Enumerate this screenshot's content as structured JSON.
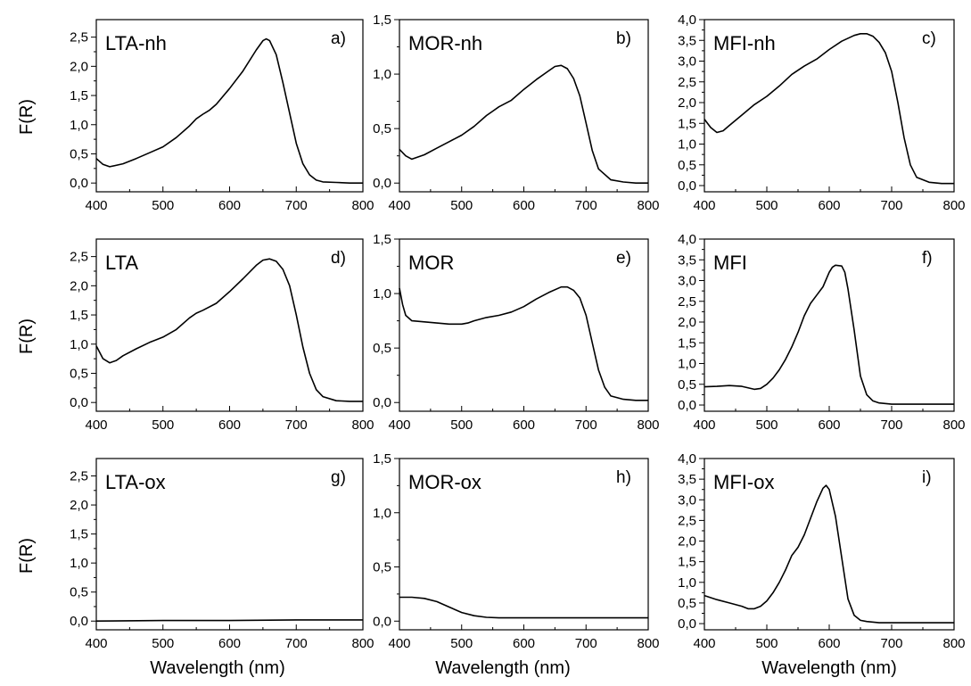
{
  "figure": {
    "ylabel": "F(R)",
    "xlabel": "Wavelength (nm)"
  },
  "chart_data": [
    {
      "id": "a",
      "type": "line",
      "label": "LTA-nh",
      "letter": "a)",
      "xlim": [
        400,
        800
      ],
      "ylim": [
        -0.15,
        2.8
      ],
      "xticks": [
        400,
        500,
        600,
        700,
        800
      ],
      "xtick_labels": [
        "400",
        "500",
        "600",
        "700",
        "800"
      ],
      "yticks": [
        0,
        0.5,
        1,
        1.5,
        2,
        2.5
      ],
      "ytick_labels": [
        "0,0",
        "0,5",
        "1,0",
        "1,5",
        "2,0",
        "2,5"
      ],
      "series": [
        {
          "x": [
            400,
            410,
            420,
            440,
            460,
            480,
            500,
            520,
            540,
            550,
            560,
            570,
            580,
            600,
            620,
            640,
            650,
            655,
            660,
            670,
            680,
            690,
            700,
            710,
            720,
            730,
            740,
            760,
            780,
            800
          ],
          "y": [
            0.42,
            0.32,
            0.28,
            0.33,
            0.42,
            0.52,
            0.62,
            0.78,
            0.98,
            1.1,
            1.18,
            1.25,
            1.35,
            1.62,
            1.92,
            2.28,
            2.44,
            2.47,
            2.44,
            2.2,
            1.72,
            1.2,
            0.68,
            0.33,
            0.14,
            0.05,
            0.02,
            0.01,
            0.0,
            0.0
          ]
        }
      ]
    },
    {
      "id": "b",
      "type": "line",
      "label": "MOR-nh",
      "letter": "b)",
      "xlim": [
        400,
        800
      ],
      "ylim": [
        -0.08,
        1.5
      ],
      "xticks": [
        400,
        500,
        600,
        700,
        800
      ],
      "xtick_labels": [
        "400",
        "500",
        "600",
        "700",
        "800"
      ],
      "yticks": [
        0,
        0.5,
        1,
        1.5
      ],
      "ytick_labels": [
        "0,0",
        "0,5",
        "1,0",
        "1,5"
      ],
      "series": [
        {
          "x": [
            400,
            410,
            420,
            440,
            460,
            480,
            500,
            520,
            540,
            550,
            560,
            580,
            600,
            620,
            640,
            650,
            660,
            670,
            680,
            690,
            700,
            710,
            720,
            740,
            760,
            780,
            800
          ],
          "y": [
            0.31,
            0.25,
            0.22,
            0.26,
            0.32,
            0.38,
            0.44,
            0.52,
            0.62,
            0.66,
            0.7,
            0.76,
            0.86,
            0.95,
            1.03,
            1.07,
            1.08,
            1.05,
            0.96,
            0.8,
            0.55,
            0.3,
            0.13,
            0.03,
            0.01,
            0.0,
            0.0
          ]
        }
      ]
    },
    {
      "id": "c",
      "type": "line",
      "label": "MFI-nh",
      "letter": "c)",
      "xlim": [
        400,
        800
      ],
      "ylim": [
        -0.15,
        4.0
      ],
      "xticks": [
        400,
        500,
        600,
        700,
        800
      ],
      "xtick_labels": [
        "400",
        "500",
        "600",
        "700",
        "800"
      ],
      "yticks": [
        0,
        0.5,
        1,
        1.5,
        2,
        2.5,
        3,
        3.5,
        4
      ],
      "ytick_labels": [
        "0,0",
        "0,5",
        "1,0",
        "1,5",
        "2,0",
        "2,5",
        "3,0",
        "3,5",
        "4,0"
      ],
      "series": [
        {
          "x": [
            400,
            410,
            420,
            430,
            440,
            460,
            480,
            500,
            520,
            540,
            560,
            580,
            600,
            620,
            640,
            650,
            660,
            670,
            680,
            690,
            700,
            710,
            720,
            730,
            740,
            760,
            780,
            800
          ],
          "y": [
            1.6,
            1.4,
            1.28,
            1.32,
            1.45,
            1.7,
            1.95,
            2.15,
            2.4,
            2.68,
            2.88,
            3.05,
            3.28,
            3.48,
            3.62,
            3.66,
            3.66,
            3.6,
            3.45,
            3.2,
            2.75,
            2.0,
            1.15,
            0.5,
            0.2,
            0.08,
            0.05,
            0.05
          ]
        }
      ]
    },
    {
      "id": "d",
      "type": "line",
      "label": "LTA",
      "letter": "d)",
      "xlim": [
        400,
        800
      ],
      "ylim": [
        -0.15,
        2.8
      ],
      "xticks": [
        400,
        500,
        600,
        700,
        800
      ],
      "xtick_labels": [
        "400",
        "500",
        "600",
        "700",
        "800"
      ],
      "yticks": [
        0,
        0.5,
        1,
        1.5,
        2,
        2.5
      ],
      "ytick_labels": [
        "0,0",
        "0,5",
        "1,0",
        "1,5",
        "2,0",
        "2,5"
      ],
      "series": [
        {
          "x": [
            400,
            410,
            420,
            430,
            440,
            460,
            480,
            500,
            520,
            540,
            550,
            560,
            580,
            600,
            620,
            640,
            650,
            660,
            670,
            680,
            690,
            700,
            710,
            720,
            730,
            740,
            760,
            780,
            800
          ],
          "y": [
            0.97,
            0.75,
            0.68,
            0.72,
            0.8,
            0.92,
            1.03,
            1.12,
            1.25,
            1.45,
            1.53,
            1.58,
            1.7,
            1.9,
            2.12,
            2.35,
            2.44,
            2.46,
            2.42,
            2.28,
            2.0,
            1.5,
            0.95,
            0.5,
            0.22,
            0.1,
            0.03,
            0.02,
            0.02
          ]
        }
      ]
    },
    {
      "id": "e",
      "type": "line",
      "label": "MOR",
      "letter": "e)",
      "xlim": [
        400,
        800
      ],
      "ylim": [
        -0.08,
        1.5
      ],
      "xticks": [
        400,
        500,
        600,
        700,
        800
      ],
      "xtick_labels": [
        "400",
        "500",
        "600",
        "700",
        "800"
      ],
      "yticks": [
        0,
        0.5,
        1,
        1.5
      ],
      "ytick_labels": [
        "0,0",
        "0,5",
        "1,0",
        "1,5"
      ],
      "series": [
        {
          "x": [
            400,
            405,
            410,
            420,
            440,
            460,
            480,
            500,
            510,
            520,
            540,
            560,
            580,
            600,
            620,
            640,
            660,
            670,
            680,
            690,
            700,
            710,
            720,
            730,
            740,
            760,
            780,
            800
          ],
          "y": [
            1.05,
            0.9,
            0.8,
            0.75,
            0.74,
            0.73,
            0.72,
            0.72,
            0.73,
            0.75,
            0.78,
            0.8,
            0.83,
            0.88,
            0.95,
            1.01,
            1.06,
            1.06,
            1.03,
            0.96,
            0.8,
            0.55,
            0.3,
            0.14,
            0.06,
            0.03,
            0.02,
            0.02
          ]
        }
      ]
    },
    {
      "id": "f",
      "type": "line",
      "label": "MFI",
      "letter": "f)",
      "xlim": [
        400,
        800
      ],
      "ylim": [
        -0.15,
        4.0
      ],
      "xticks": [
        400,
        500,
        600,
        700,
        800
      ],
      "xtick_labels": [
        "400",
        "500",
        "600",
        "700",
        "800"
      ],
      "yticks": [
        0,
        0.5,
        1,
        1.5,
        2,
        2.5,
        3,
        3.5,
        4
      ],
      "ytick_labels": [
        "0,0",
        "0,5",
        "1,0",
        "1,5",
        "2,0",
        "2,5",
        "3,0",
        "3,5",
        "4,0"
      ],
      "series": [
        {
          "x": [
            400,
            420,
            440,
            460,
            480,
            490,
            500,
            510,
            520,
            530,
            540,
            550,
            560,
            570,
            580,
            590,
            600,
            605,
            610,
            620,
            625,
            630,
            640,
            650,
            660,
            670,
            680,
            700,
            720,
            740,
            760,
            780,
            800
          ],
          "y": [
            0.44,
            0.45,
            0.47,
            0.45,
            0.38,
            0.4,
            0.5,
            0.65,
            0.85,
            1.1,
            1.4,
            1.75,
            2.15,
            2.45,
            2.65,
            2.85,
            3.2,
            3.32,
            3.37,
            3.35,
            3.2,
            2.8,
            1.8,
            0.7,
            0.25,
            0.1,
            0.05,
            0.02,
            0.02,
            0.02,
            0.02,
            0.02,
            0.02
          ]
        }
      ]
    },
    {
      "id": "g",
      "type": "line",
      "label": "LTA-ox",
      "letter": "g)",
      "xlim": [
        400,
        800
      ],
      "ylim": [
        -0.15,
        2.8
      ],
      "xticks": [
        400,
        500,
        600,
        700,
        800
      ],
      "xtick_labels": [
        "400",
        "500",
        "600",
        "700",
        "800"
      ],
      "yticks": [
        0,
        0.5,
        1,
        1.5,
        2,
        2.5
      ],
      "ytick_labels": [
        "0,0",
        "0,5",
        "1,0",
        "1,5",
        "2,0",
        "2,5"
      ],
      "series": [
        {
          "x": [
            400,
            500,
            600,
            700,
            800
          ],
          "y": [
            0.0,
            0.01,
            0.01,
            0.02,
            0.02
          ]
        }
      ]
    },
    {
      "id": "h",
      "type": "line",
      "label": "MOR-ox",
      "letter": "h)",
      "xlim": [
        400,
        800
      ],
      "ylim": [
        -0.08,
        1.5
      ],
      "xticks": [
        400,
        500,
        600,
        700,
        800
      ],
      "xtick_labels": [
        "400",
        "500",
        "600",
        "700",
        "800"
      ],
      "yticks": [
        0,
        0.5,
        1,
        1.5
      ],
      "ytick_labels": [
        "0,0",
        "0,5",
        "1,0",
        "1,5"
      ],
      "series": [
        {
          "x": [
            400,
            420,
            440,
            460,
            480,
            500,
            520,
            540,
            560,
            600,
            700,
            800
          ],
          "y": [
            0.22,
            0.22,
            0.21,
            0.18,
            0.13,
            0.08,
            0.05,
            0.035,
            0.03,
            0.03,
            0.03,
            0.03
          ]
        }
      ]
    },
    {
      "id": "i",
      "type": "line",
      "label": "MFI-ox",
      "letter": "i)",
      "xlim": [
        400,
        800
      ],
      "ylim": [
        -0.15,
        4.0
      ],
      "xticks": [
        400,
        500,
        600,
        700,
        800
      ],
      "xtick_labels": [
        "400",
        "500",
        "600",
        "700",
        "800"
      ],
      "yticks": [
        0,
        0.5,
        1,
        1.5,
        2,
        2.5,
        3,
        3.5,
        4
      ],
      "ytick_labels": [
        "0,0",
        "0,5",
        "1,0",
        "1,5",
        "2,0",
        "2,5",
        "3,0",
        "3,5",
        "4,0"
      ],
      "series": [
        {
          "x": [
            400,
            420,
            440,
            460,
            470,
            480,
            490,
            500,
            510,
            520,
            530,
            540,
            550,
            560,
            570,
            580,
            590,
            595,
            600,
            610,
            620,
            630,
            640,
            650,
            660,
            680,
            700,
            800
          ],
          "y": [
            0.68,
            0.58,
            0.5,
            0.42,
            0.36,
            0.36,
            0.42,
            0.55,
            0.75,
            1.0,
            1.3,
            1.65,
            1.85,
            2.15,
            2.55,
            2.95,
            3.28,
            3.35,
            3.25,
            2.6,
            1.6,
            0.6,
            0.2,
            0.08,
            0.05,
            0.02,
            0.02,
            0.02
          ]
        }
      ]
    }
  ]
}
